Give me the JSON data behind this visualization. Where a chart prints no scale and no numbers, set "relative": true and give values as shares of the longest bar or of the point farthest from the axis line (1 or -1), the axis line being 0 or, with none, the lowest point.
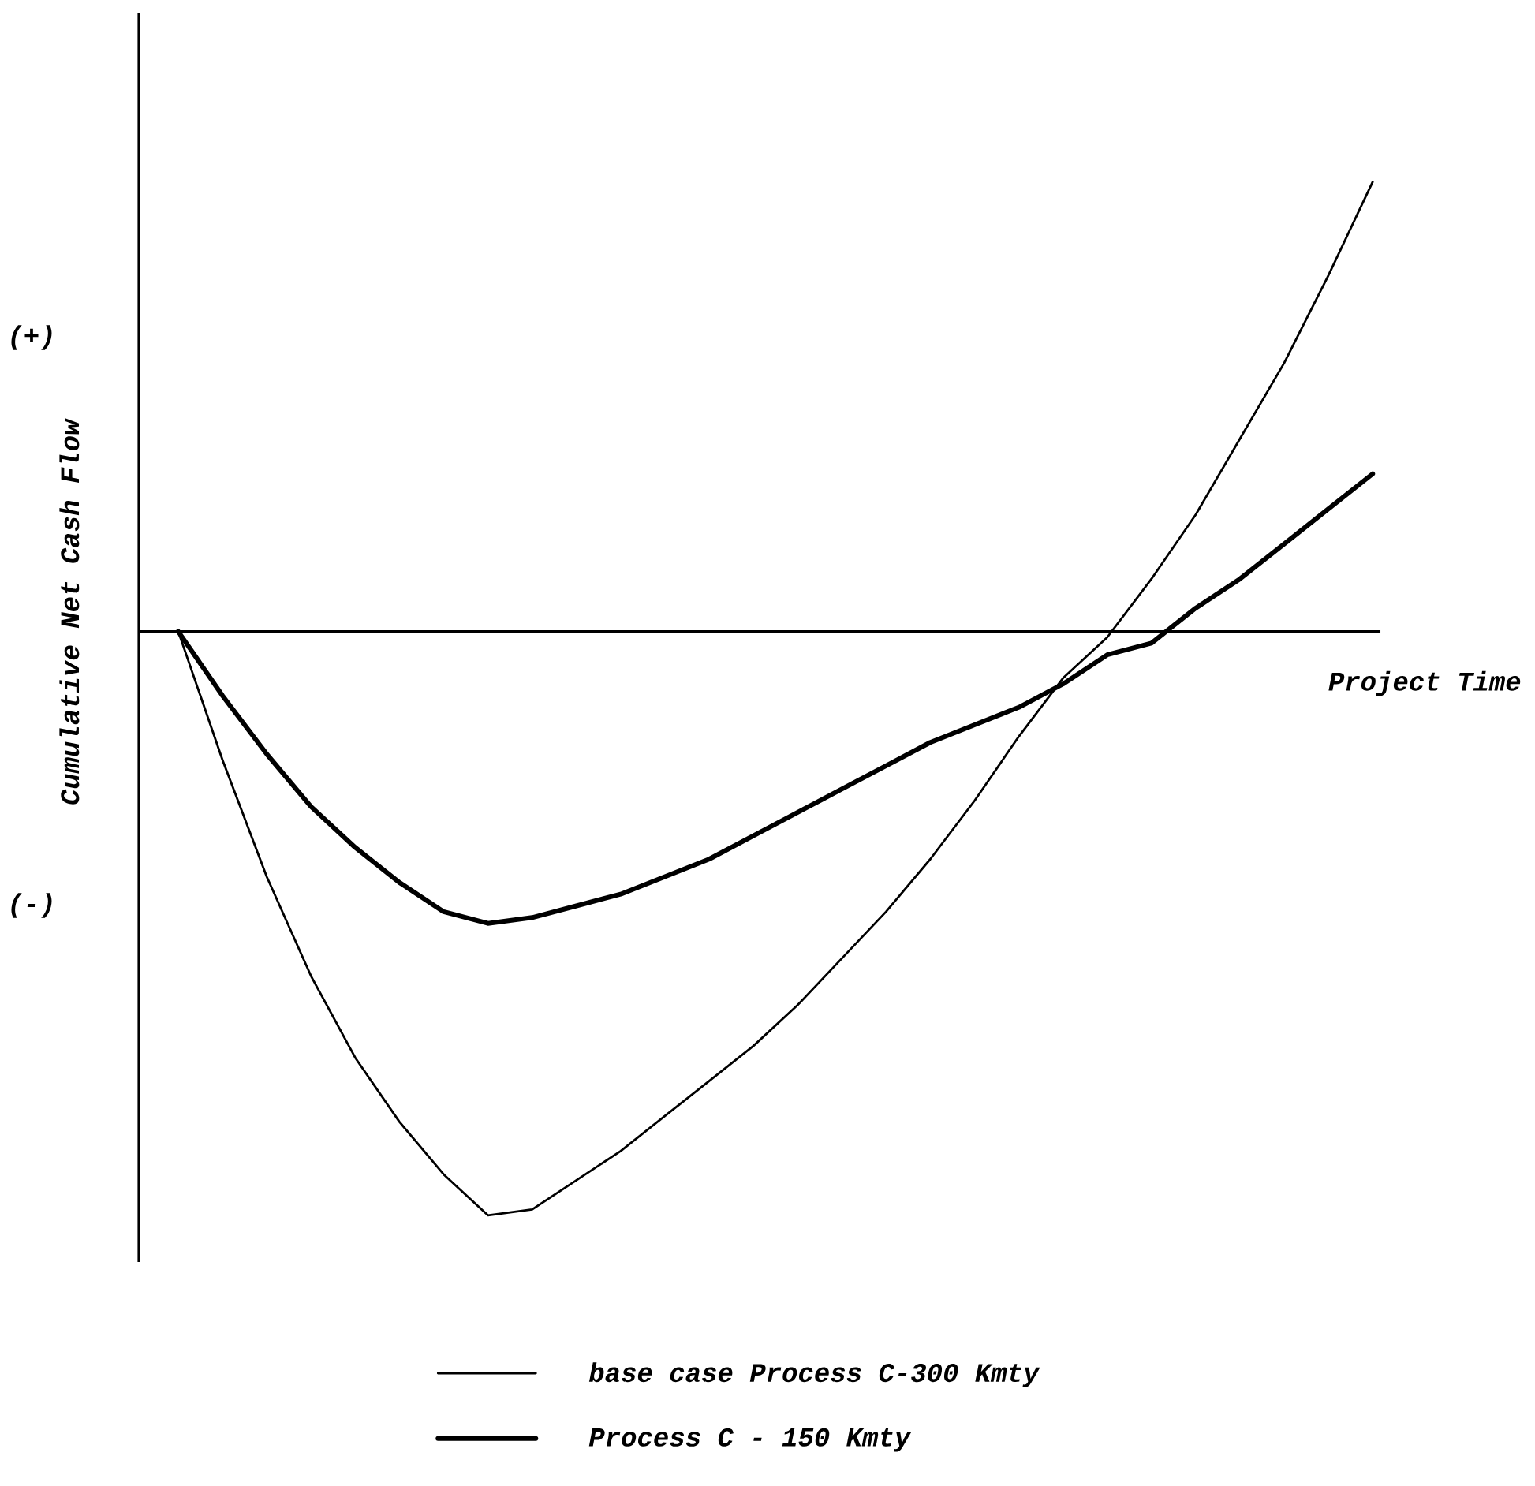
{
  "chart_data": {
    "type": "line",
    "relative": true,
    "xlabel": "Project Time",
    "ylabel": "Cumulative Net Cash Flow",
    "annotations": [
      "(+)",
      "(-)"
    ],
    "legend": "bottom",
    "categories": [
      null,
      null,
      null,
      null,
      null,
      null,
      null,
      null,
      null,
      null,
      null,
      null,
      null,
      null,
      null,
      null,
      null,
      null,
      null,
      null,
      null,
      null,
      null,
      null,
      null,
      null,
      null,
      null
    ],
    "series": [
      {
        "name": "base case Process C-300 Kmty",
        "color": "#000000",
        "values": [
          0,
          -0.22,
          -0.42,
          -0.59,
          -0.73,
          -0.84,
          -0.93,
          -1,
          -0.99,
          -0.94,
          -0.89,
          -0.83,
          -0.77,
          -0.71,
          -0.64,
          -0.56,
          -0.48,
          -0.39,
          -0.29,
          -0.18,
          -0.08,
          -0.01,
          0.09,
          0.2,
          0.33,
          0.46,
          0.61,
          0.77
        ]
      },
      {
        "name": "Process C - 150 Kmty",
        "color": "#000000",
        "values": [
          0,
          -0.11,
          -0.21,
          -0.3,
          -0.37,
          -0.43,
          -0.48,
          -0.5,
          -0.49,
          -0.47,
          -0.45,
          -0.42,
          -0.39,
          -0.35,
          -0.31,
          -0.27,
          -0.23,
          -0.19,
          -0.16,
          -0.13,
          -0.09,
          -0.04,
          -0.02,
          0.04,
          0.09,
          0.15,
          0.21,
          0.27
        ]
      }
    ]
  }
}
